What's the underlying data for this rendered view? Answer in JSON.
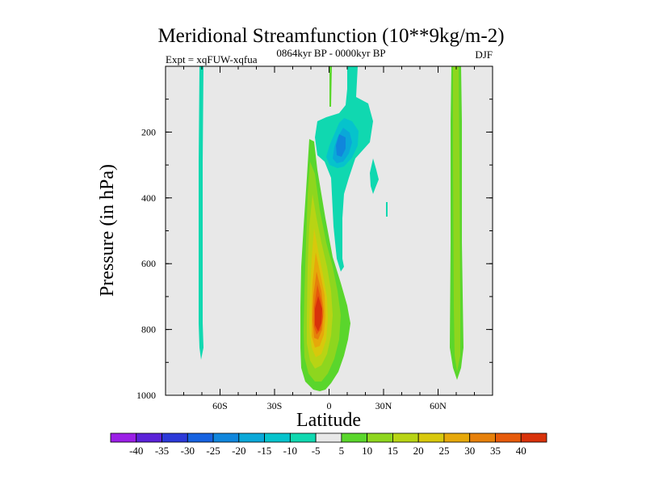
{
  "chart_data": {
    "type": "contour",
    "title": "Meridional Streamfunction (10**9kg/m-2)",
    "subtitle_left": "Expt = xqFUW-xqfua",
    "subtitle_center": "0864kyr BP - 0000kyr BP",
    "subtitle_right": "DJF",
    "xlabel": "Latitude",
    "ylabel": "Pressure (in hPa)",
    "xlim": [
      -90,
      90
    ],
    "ylim": [
      0,
      1000
    ],
    "y_inverted": true,
    "x_ticks": [
      {
        "value": -60,
        "label": "60S"
      },
      {
        "value": -30,
        "label": "30S"
      },
      {
        "value": 0,
        "label": "0"
      },
      {
        "value": 30,
        "label": "30N"
      },
      {
        "value": 60,
        "label": "60N"
      }
    ],
    "y_ticks": [
      {
        "value": 200,
        "label": "200"
      },
      {
        "value": 400,
        "label": "400"
      },
      {
        "value": 600,
        "label": "600"
      },
      {
        "value": 800,
        "label": "800"
      },
      {
        "value": 1000,
        "label": "1000"
      }
    ],
    "background_color": "#e8e8e8",
    "colorbar": {
      "labels": [
        "-40",
        "-35",
        "-30",
        "-25",
        "-20",
        "-15",
        "-10",
        "-5",
        "5",
        "10",
        "15",
        "20",
        "25",
        "30",
        "35",
        "40"
      ],
      "colors": [
        "#9b1fe6",
        "#5b22d8",
        "#2c39d8",
        "#1662e0",
        "#1086dc",
        "#0aa8d8",
        "#06c3cc",
        "#10d8b0",
        "#e8e8e8",
        "#5ad62c",
        "#8ed61e",
        "#b8d414",
        "#d8c80c",
        "#e6a80a",
        "#e6800a",
        "#e65a0a",
        "#d8320a"
      ]
    },
    "features": [
      {
        "name": "thin band near 70S",
        "sign": "negative",
        "peak": -7,
        "lat_center": -69,
        "p_top": 0,
        "p_bottom": 890
      },
      {
        "name": "thin band near 70N",
        "sign": "positive",
        "peak": 12,
        "lat_center": 70,
        "p_top": 0,
        "p_bottom": 950
      },
      {
        "name": "main positive tropical cell",
        "sign": "positive",
        "peak": 40,
        "lat_center": -3,
        "p_top": 230,
        "p_bottom": 990
      },
      {
        "name": "upper negative cell",
        "sign": "negative",
        "peak": -22,
        "lat_center": 6,
        "p_top": 0,
        "p_bottom": 620
      },
      {
        "name": "small negative patch 25N",
        "sign": "negative",
        "peak": -7,
        "lat_center": 26,
        "p_top": 290,
        "p_bottom": 380
      }
    ]
  }
}
